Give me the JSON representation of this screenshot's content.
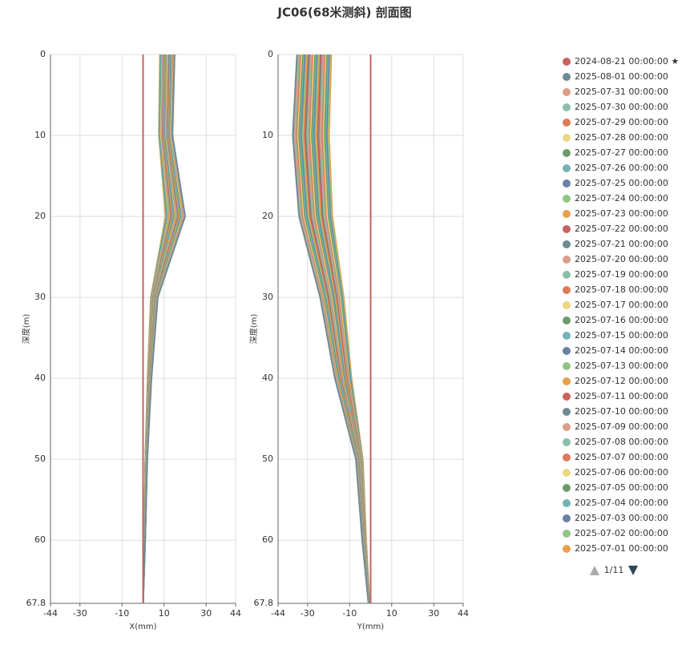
{
  "chart_data": {
    "type": "line",
    "title": "JC06(68米测斜) 剖面图",
    "depths": [
      0,
      10,
      20,
      30,
      40,
      50,
      60,
      67.8
    ],
    "panels": [
      {
        "xlabel": "X(mm)",
        "ylabel": "深度(m)",
        "xlim": [
          -44,
          44
        ],
        "xticks": [
          -44,
          -30,
          -10,
          10,
          30,
          44
        ],
        "ylim": [
          0,
          67.8
        ],
        "yticks": [
          0,
          10,
          20,
          30,
          40,
          50,
          60,
          67.8
        ],
        "grid": true
      },
      {
        "xlabel": "Y(mm)",
        "ylabel": "深度(m)",
        "xlim": [
          -44,
          44
        ],
        "xticks": [
          -44,
          -30,
          -10,
          10,
          30,
          44
        ],
        "ylim": [
          0,
          67.8
        ],
        "yticks": [
          0,
          10,
          20,
          30,
          40,
          50,
          60,
          67.8
        ],
        "grid": true
      }
    ],
    "series": [
      {
        "name": "2024-08-21 00:00:00 ★",
        "color": "#c7635e",
        "x": [
          0,
          0,
          0,
          0,
          0,
          0,
          0,
          0
        ],
        "y": [
          0,
          0,
          0,
          0,
          0,
          0,
          0,
          0
        ]
      },
      {
        "name": "2025-08-01 00:00:00",
        "color": "#6e8a94",
        "x": [
          15,
          14,
          20,
          7,
          4,
          2,
          1,
          0
        ],
        "y": [
          -35,
          -37,
          -34,
          -24,
          -17,
          -7,
          -4,
          -1
        ]
      },
      {
        "name": "2025-07-31 00:00:00",
        "color": "#dc9d87",
        "x": [
          14.8,
          13.8,
          19.7,
          6.9,
          3.9,
          2,
          1,
          0
        ],
        "y": [
          -34.5,
          -36.4,
          -33.5,
          -23.6,
          -16.7,
          -6.9,
          -3.9,
          -1
        ]
      },
      {
        "name": "2025-07-30 00:00:00",
        "color": "#8cbfa8",
        "x": [
          14.6,
          13.6,
          19.4,
          6.8,
          3.9,
          1.9,
          1,
          0
        ],
        "y": [
          -34,
          -35.9,
          -33,
          -23.3,
          -16.5,
          -6.8,
          -3.9,
          -1
        ]
      },
      {
        "name": "2025-07-29 00:00:00",
        "color": "#de7a57",
        "x": [
          14.3,
          13.4,
          19.1,
          6.7,
          3.8,
          1.9,
          1,
          0
        ],
        "y": [
          -33.4,
          -35.3,
          -32.5,
          -22.9,
          -16.2,
          -6.7,
          -3.8,
          -1
        ]
      },
      {
        "name": "2025-07-28 00:00:00",
        "color": "#ecd77f",
        "x": [
          14.1,
          13.2,
          18.8,
          6.6,
          3.8,
          1.9,
          0.9,
          0
        ],
        "y": [
          -32.9,
          -34.8,
          -32,
          -22.6,
          -16,
          -6.6,
          -3.8,
          -0.9
        ]
      },
      {
        "name": "2025-07-27 00:00:00",
        "color": "#6f9b6a",
        "x": [
          13.9,
          13,
          18.5,
          6.5,
          3.7,
          1.9,
          0.9,
          0
        ],
        "y": [
          -32.4,
          -34.2,
          -31.5,
          -22.2,
          -15.7,
          -6.5,
          -3.7,
          -0.9
        ]
      },
      {
        "name": "2025-07-26 00:00:00",
        "color": "#74b3b4",
        "x": [
          13.7,
          12.7,
          18.2,
          6.4,
          3.6,
          1.8,
          0.9,
          0
        ],
        "y": [
          -31.9,
          -33.7,
          -30.9,
          -21.8,
          -15.5,
          -6.4,
          -3.6,
          -0.9
        ]
      },
      {
        "name": "2025-07-25 00:00:00",
        "color": "#6882a3",
        "x": [
          13.4,
          12.5,
          17.9,
          6.3,
          3.6,
          1.8,
          0.9,
          0
        ],
        "y": [
          -31.3,
          -33.1,
          -30.4,
          -21.5,
          -15.2,
          -6.3,
          -3.6,
          -0.9
        ]
      },
      {
        "name": "2025-07-24 00:00:00",
        "color": "#8fc583",
        "x": [
          13.2,
          12.3,
          17.6,
          6.2,
          3.5,
          1.8,
          0.9,
          0
        ],
        "y": [
          -30.8,
          -32.6,
          -29.9,
          -21.1,
          -15,
          -6.2,
          -3.5,
          -0.9
        ]
      },
      {
        "name": "2025-07-23 00:00:00",
        "color": "#e9a04a",
        "x": [
          13,
          12.1,
          17.3,
          6.1,
          3.5,
          1.7,
          0.9,
          0
        ],
        "y": [
          -30.3,
          -32,
          -29.4,
          -20.8,
          -14.7,
          -6.1,
          -3.5,
          -0.9
        ]
      },
      {
        "name": "2025-07-22 00:00:00",
        "color": "#c7635e",
        "x": [
          12.8,
          11.9,
          17,
          6,
          3.4,
          1.7,
          0.9,
          0
        ],
        "y": [
          -29.8,
          -31.5,
          -28.9,
          -20.4,
          -14.5,
          -6,
          -3.4,
          -0.9
        ]
      },
      {
        "name": "2025-07-21 00:00:00",
        "color": "#6e8a94",
        "x": [
          12.5,
          11.7,
          16.7,
          5.8,
          3.3,
          1.7,
          0.8,
          0
        ],
        "y": [
          -29.2,
          -30.9,
          -28.4,
          -20,
          -14.2,
          -5.8,
          -3.3,
          -0.8
        ]
      },
      {
        "name": "2025-07-20 00:00:00",
        "color": "#dc9d87",
        "x": [
          12.3,
          11.5,
          16.4,
          5.7,
          3.3,
          1.6,
          0.8,
          0
        ],
        "y": [
          -28.7,
          -30.3,
          -27.9,
          -19.7,
          -13.9,
          -5.7,
          -3.3,
          -0.8
        ]
      },
      {
        "name": "2025-07-19 00:00:00",
        "color": "#8cbfa8",
        "x": [
          12.1,
          11.3,
          16.1,
          5.6,
          3.2,
          1.6,
          0.8,
          0
        ],
        "y": [
          -28.2,
          -29.8,
          -27.4,
          -19.3,
          -13.7,
          -5.6,
          -3.2,
          -0.8
        ]
      },
      {
        "name": "2025-07-18 00:00:00",
        "color": "#de7a57",
        "x": [
          11.9,
          11.1,
          15.8,
          5.5,
          3.2,
          1.6,
          0.8,
          0
        ],
        "y": [
          -27.7,
          -29.2,
          -26.9,
          -19,
          -13.4,
          -5.5,
          -3.2,
          -0.8
        ]
      },
      {
        "name": "2025-07-17 00:00:00",
        "color": "#ecd77f",
        "x": [
          11.6,
          10.9,
          15.5,
          5.4,
          3.1,
          1.6,
          0.8,
          0
        ],
        "y": [
          -27.1,
          -28.7,
          -26.4,
          -18.6,
          -13.2,
          -5.4,
          -3.1,
          -0.8
        ]
      },
      {
        "name": "2025-07-16 00:00:00",
        "color": "#6f9b6a",
        "x": [
          11.4,
          10.6,
          15.2,
          5.3,
          3,
          1.5,
          0.8,
          0
        ],
        "y": [
          -26.6,
          -28.1,
          -25.8,
          -18.2,
          -12.9,
          -5.3,
          -3,
          -0.8
        ]
      },
      {
        "name": "2025-07-15 00:00:00",
        "color": "#74b3b4",
        "x": [
          11.2,
          10.4,
          14.9,
          5.2,
          3,
          1.5,
          0.7,
          0
        ],
        "y": [
          -26.1,
          -27.6,
          -25.3,
          -17.9,
          -12.7,
          -5.2,
          -3,
          -0.7
        ]
      },
      {
        "name": "2025-07-14 00:00:00",
        "color": "#6882a3",
        "x": [
          11,
          10.2,
          14.6,
          5.1,
          2.9,
          1.5,
          0.7,
          0
        ],
        "y": [
          -25.6,
          -27,
          -24.8,
          -17.5,
          -12.4,
          -5.1,
          -2.9,
          -0.7
        ]
      },
      {
        "name": "2025-07-13 00:00:00",
        "color": "#8fc583",
        "x": [
          10.7,
          10,
          14.3,
          5,
          2.9,
          1.4,
          0.7,
          0
        ],
        "y": [
          -25,
          -26.5,
          -24.3,
          -17.2,
          -12.2,
          -5,
          -2.9,
          -0.7
        ]
      },
      {
        "name": "2025-07-12 00:00:00",
        "color": "#e9a04a",
        "x": [
          10.5,
          9.8,
          14,
          4.9,
          2.8,
          1.4,
          0.7,
          0
        ],
        "y": [
          -24.5,
          -25.9,
          -23.8,
          -16.8,
          -11.9,
          -4.9,
          -2.8,
          -0.7
        ]
      },
      {
        "name": "2025-07-11 00:00:00",
        "color": "#c7635e",
        "x": [
          10.3,
          9.6,
          13.7,
          4.8,
          2.7,
          1.4,
          0.7,
          0
        ],
        "y": [
          -24,
          -25.3,
          -23.3,
          -16.4,
          -11.6,
          -4.8,
          -2.7,
          -0.7
        ]
      },
      {
        "name": "2025-07-10 00:00:00",
        "color": "#6e8a94",
        "x": [
          10.1,
          9.4,
          13.4,
          4.7,
          2.7,
          1.3,
          0.7,
          0
        ],
        "y": [
          -23.5,
          -24.8,
          -22.8,
          -16.1,
          -11.4,
          -4.7,
          -2.7,
          -0.7
        ]
      },
      {
        "name": "2025-07-09 00:00:00",
        "color": "#dc9d87",
        "x": [
          9.8,
          9.2,
          13.1,
          4.6,
          2.6,
          1.3,
          0.7,
          0
        ],
        "y": [
          -22.9,
          -24.2,
          -22.3,
          -15.7,
          -11.1,
          -4.6,
          -2.6,
          -0.7
        ]
      },
      {
        "name": "2025-07-08 00:00:00",
        "color": "#8cbfa8",
        "x": [
          9.6,
          9,
          12.8,
          4.5,
          2.6,
          1.3,
          0.6,
          0
        ],
        "y": [
          -22.4,
          -23.7,
          -21.8,
          -15.4,
          -10.9,
          -4.5,
          -2.6,
          -0.6
        ]
      },
      {
        "name": "2025-07-07 00:00:00",
        "color": "#de7a57",
        "x": [
          9.4,
          8.8,
          12.5,
          4.4,
          2.5,
          1.3,
          0.6,
          0
        ],
        "y": [
          -21.9,
          -23.1,
          -21.3,
          -15,
          -10.6,
          -4.4,
          -2.5,
          -0.6
        ]
      },
      {
        "name": "2025-07-06 00:00:00",
        "color": "#ecd77f",
        "x": [
          9.2,
          8.5,
          12.2,
          4.3,
          2.4,
          1.2,
          0.6,
          0
        ],
        "y": [
          -21.4,
          -22.6,
          -20.7,
          -14.6,
          -10.4,
          -4.3,
          -2.4,
          -0.6
        ]
      },
      {
        "name": "2025-07-05 00:00:00",
        "color": "#6f9b6a",
        "x": [
          8.9,
          8.3,
          11.9,
          4.2,
          2.4,
          1.2,
          0.6,
          0
        ],
        "y": [
          -20.8,
          -22,
          -20.2,
          -14.3,
          -10.1,
          -4.2,
          -2.4,
          -0.6
        ]
      },
      {
        "name": "2025-07-04 00:00:00",
        "color": "#74b3b4",
        "x": [
          8.7,
          8.1,
          11.6,
          4.1,
          2.3,
          1.2,
          0.6,
          0
        ],
        "y": [
          -20.3,
          -21.5,
          -19.7,
          -13.9,
          -9.9,
          -4.1,
          -2.3,
          -0.6
        ]
      },
      {
        "name": "2025-07-03 00:00:00",
        "color": "#6882a3",
        "x": [
          8.5,
          7.9,
          11.3,
          4,
          2.3,
          1.1,
          0.6,
          0
        ],
        "y": [
          -19.8,
          -20.9,
          -19.2,
          -13.6,
          -9.6,
          -4,
          -2.3,
          -0.6
        ]
      },
      {
        "name": "2025-07-02 00:00:00",
        "color": "#8fc583",
        "x": [
          8.3,
          7.7,
          11,
          3.9,
          2.2,
          1.1,
          0.6,
          0
        ],
        "y": [
          -19.3,
          -20.4,
          -18.7,
          -13.2,
          -9.4,
          -3.9,
          -2.2,
          -0.6
        ]
      },
      {
        "name": "2025-07-01 00:00:00",
        "color": "#e9a04a",
        "x": [
          8,
          7.5,
          10.7,
          3.7,
          2.1,
          1.1,
          0.5,
          0
        ],
        "y": [
          -18.7,
          -19.8,
          -18.2,
          -12.8,
          -9.1,
          -3.7,
          -2.1,
          -0.5
        ]
      }
    ],
    "legend_page": "1/11"
  }
}
